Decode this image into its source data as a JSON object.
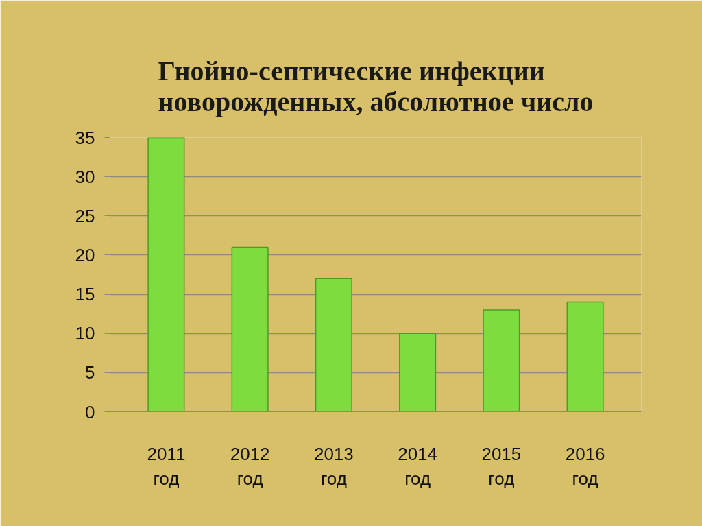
{
  "chart_data": {
    "type": "bar",
    "title": "Гнойно-септические инфекции новорожденных, абсолютное число",
    "categories": [
      "2011 год",
      "2012 год",
      "2013 год",
      "2014 год",
      "2015 год",
      "2016 год"
    ],
    "values": [
      35,
      21,
      17,
      10,
      13,
      14
    ],
    "color": "#7ddc3e",
    "ylim": [
      0,
      35
    ],
    "yticks": [
      0,
      5,
      10,
      15,
      20,
      25,
      30,
      35
    ],
    "grid": "y"
  }
}
